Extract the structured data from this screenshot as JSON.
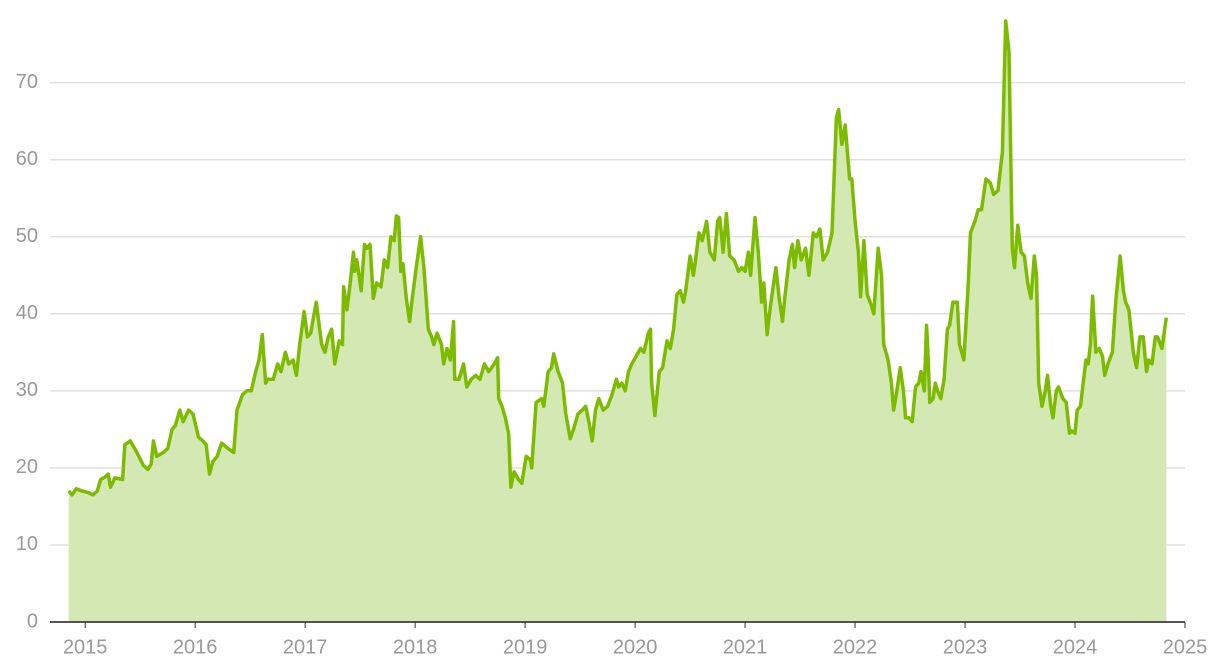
{
  "chart_data": {
    "type": "area",
    "x": [
      2014.85,
      2014.88,
      2014.92,
      2014.97,
      2015.03,
      2015.07,
      2015.11,
      2015.14,
      2015.18,
      2015.21,
      2015.23,
      2015.27,
      2015.34,
      2015.36,
      2015.41,
      2015.47,
      2015.53,
      2015.57,
      2015.6,
      2015.62,
      2015.65,
      2015.71,
      2015.75,
      2015.79,
      2015.82,
      2015.86,
      2015.89,
      2015.94,
      2015.98,
      2016.03,
      2016.07,
      2016.1,
      2016.13,
      2016.16,
      2016.2,
      2016.24,
      2016.3,
      2016.35,
      2016.38,
      2016.43,
      2016.47,
      2016.51,
      2016.55,
      2016.58,
      2016.61,
      2016.64,
      2016.66,
      2016.71,
      2016.75,
      2016.78,
      2016.82,
      2016.85,
      2016.89,
      2016.92,
      2016.95,
      2016.99,
      2017.02,
      2017.05,
      2017.1,
      2017.15,
      2017.18,
      2017.21,
      2017.24,
      2017.27,
      2017.31,
      2017.34,
      2017.35,
      2017.38,
      2017.41,
      2017.44,
      2017.45,
      2017.47,
      2017.51,
      2017.54,
      2017.56,
      2017.59,
      2017.62,
      2017.65,
      2017.69,
      2017.72,
      2017.75,
      2017.78,
      2017.81,
      2017.83,
      2017.85,
      2017.87,
      2017.89,
      2017.92,
      2017.95,
      2017.97,
      2018.01,
      2018.05,
      2018.08,
      2018.12,
      2018.15,
      2018.17,
      2018.2,
      2018.24,
      2018.26,
      2018.29,
      2018.32,
      2018.35,
      2018.36,
      2018.4,
      2018.44,
      2018.47,
      2018.51,
      2018.55,
      2018.59,
      2018.63,
      2018.67,
      2018.72,
      2018.75,
      2018.76,
      2018.79,
      2018.82,
      2018.85,
      2018.87,
      2018.9,
      2018.94,
      2018.97,
      2019.01,
      2019.05,
      2019.06,
      2019.1,
      2019.15,
      2019.17,
      2019.21,
      2019.24,
      2019.26,
      2019.3,
      2019.34,
      2019.37,
      2019.41,
      2019.44,
      2019.48,
      2019.52,
      2019.55,
      2019.58,
      2019.61,
      2019.64,
      2019.67,
      2019.71,
      2019.75,
      2019.79,
      2019.83,
      2019.85,
      2019.88,
      2019.91,
      2019.94,
      2019.97,
      2020.01,
      2020.05,
      2020.08,
      2020.12,
      2020.14,
      2020.15,
      2020.18,
      2020.22,
      2020.25,
      2020.29,
      2020.32,
      2020.35,
      2020.38,
      2020.41,
      2020.44,
      2020.46,
      2020.5,
      2020.53,
      2020.55,
      2020.58,
      2020.61,
      2020.65,
      2020.68,
      2020.72,
      2020.75,
      2020.77,
      2020.8,
      2020.83,
      2020.86,
      2020.9,
      2020.94,
      2020.97,
      2021.0,
      2021.03,
      2021.05,
      2021.09,
      2021.12,
      2021.15,
      2021.17,
      2021.2,
      2021.23,
      2021.25,
      2021.28,
      2021.31,
      2021.34,
      2021.36,
      2021.4,
      2021.43,
      2021.45,
      2021.48,
      2021.51,
      2021.55,
      2021.58,
      2021.62,
      2021.65,
      2021.68,
      2021.71,
      2021.75,
      2021.79,
      2021.83,
      2021.85,
      2021.88,
      2021.91,
      2021.95,
      2021.97,
      2022.0,
      2022.03,
      2022.05,
      2022.08,
      2022.11,
      2022.15,
      2022.17,
      2022.21,
      2022.24,
      2022.26,
      2022.3,
      2022.33,
      2022.35,
      2022.38,
      2022.41,
      2022.44,
      2022.46,
      2022.49,
      2022.52,
      2022.55,
      2022.58,
      2022.6,
      2022.63,
      2022.65,
      2022.66,
      2022.68,
      2022.71,
      2022.73,
      2022.75,
      2022.78,
      2022.81,
      2022.84,
      2022.86,
      2022.89,
      2022.93,
      2022.95,
      2022.99,
      2023.03,
      2023.05,
      2023.09,
      2023.12,
      2023.15,
      2023.19,
      2023.23,
      2023.26,
      2023.3,
      2023.34,
      2023.37,
      2023.4,
      2023.43,
      2023.45,
      2023.48,
      2023.51,
      2023.54,
      2023.57,
      2023.6,
      2023.63,
      2023.65,
      2023.67,
      2023.7,
      2023.73,
      2023.75,
      2023.78,
      2023.8,
      2023.83,
      2023.85,
      2023.89,
      2023.92,
      2023.95,
      2023.97,
      2024.0,
      2024.02,
      2024.05,
      2024.07,
      2024.1,
      2024.12,
      2024.14,
      2024.16,
      2024.19,
      2024.22,
      2024.25,
      2024.27,
      2024.3,
      2024.34,
      2024.37,
      2024.41,
      2024.44,
      2024.46,
      2024.49,
      2024.53,
      2024.56,
      2024.59,
      2024.62,
      2024.65,
      2024.67,
      2024.7,
      2024.73,
      2024.75,
      2024.79,
      2024.83
    ],
    "values": [
      17,
      16.5,
      17.3,
      17,
      16.8,
      16.5,
      17,
      18.5,
      18.8,
      19.2,
      17.5,
      18.7,
      18.5,
      23,
      23.5,
      22,
      20.3,
      19.8,
      20.5,
      23.5,
      21.5,
      22,
      22.5,
      25,
      25.5,
      27.5,
      26,
      27.5,
      27,
      24,
      23.5,
      23,
      19.2,
      20.8,
      21.5,
      23.2,
      22.5,
      22,
      27.5,
      29.5,
      30,
      30,
      32.5,
      34,
      37.3,
      31,
      31.5,
      31.5,
      33.5,
      32.5,
      35,
      33.5,
      34,
      32,
      36,
      40.3,
      37,
      37.5,
      41.5,
      36,
      35,
      37,
      38,
      33.5,
      36.5,
      36,
      43.5,
      40.5,
      44,
      48,
      45.5,
      47,
      43,
      49,
      48.5,
      49,
      42,
      44,
      43.5,
      47,
      46,
      50,
      49.5,
      52.7,
      52.5,
      45.5,
      46.5,
      42,
      39,
      41.5,
      46,
      50,
      46,
      38,
      37,
      36,
      37.5,
      36,
      33.5,
      35.5,
      34,
      39,
      31.5,
      31.5,
      33.5,
      30.5,
      31.5,
      32,
      31.5,
      33.5,
      32.5,
      33.5,
      34.3,
      29,
      28,
      26.5,
      24.5,
      17.5,
      19.5,
      18.5,
      18,
      21.5,
      21,
      20,
      28.5,
      29,
      28,
      32.5,
      33,
      34.8,
      32.5,
      31,
      27,
      23.8,
      25,
      27,
      27.5,
      28,
      26,
      23.5,
      27.5,
      29,
      27.5,
      28,
      29.5,
      31.5,
      30.5,
      31,
      30,
      32.5,
      33.5,
      34.5,
      35.5,
      35,
      37.5,
      38,
      31,
      26.8,
      32.5,
      33,
      36.5,
      35.5,
      38,
      42.5,
      43,
      41.5,
      43,
      47.5,
      45,
      47,
      50.5,
      49.5,
      52,
      48,
      47,
      52,
      52.5,
      48,
      53,
      47.5,
      47,
      45.5,
      46,
      45.5,
      48,
      45,
      52.5,
      48,
      41.5,
      44,
      37.3,
      41,
      43,
      46,
      42,
      39,
      42,
      47,
      49,
      46,
      49.5,
      47,
      48.5,
      45,
      50.5,
      50,
      51,
      47,
      48,
      50.5,
      65.5,
      66.5,
      62,
      64.5,
      57.5,
      57.5,
      52,
      48,
      42.2,
      49.5,
      42.5,
      41,
      40,
      48.5,
      45,
      36,
      34,
      31,
      27.5,
      30,
      33,
      30,
      26.5,
      26.5,
      26,
      30.5,
      31,
      32.5,
      30,
      38.5,
      36,
      28.5,
      29,
      31,
      30,
      29,
      31.5,
      38,
      38.5,
      41.5,
      41.5,
      36,
      34,
      44,
      50.5,
      52,
      53.5,
      53.5,
      57.5,
      57,
      55.5,
      56,
      61,
      78,
      74,
      48.5,
      46,
      51.5,
      48,
      47.5,
      44,
      42,
      47.5,
      45,
      31,
      28,
      30,
      32,
      28,
      26.5,
      30,
      30.5,
      29,
      28.5,
      24.5,
      24.8,
      24.5,
      27.5,
      28,
      30.5,
      34,
      33.5,
      36,
      42.3,
      35,
      35.5,
      34.5,
      32,
      33.5,
      35,
      41.5,
      47.5,
      43,
      41.5,
      40.5,
      35,
      33,
      37,
      37,
      32.5,
      34,
      33.5,
      37,
      37,
      35.5,
      39.5
    ],
    "color": "#7cbb00",
    "fill": "#d4e8b4",
    "xlim": [
      2014.68,
      2025
    ],
    "xticks": [
      2015,
      2016,
      2017,
      2018,
      2019,
      2020,
      2021,
      2022,
      2023,
      2024,
      2025
    ],
    "ylim": [
      0,
      78
    ],
    "yticks": [
      0,
      10,
      20,
      30,
      40,
      50,
      60,
      70
    ],
    "grid": true
  }
}
